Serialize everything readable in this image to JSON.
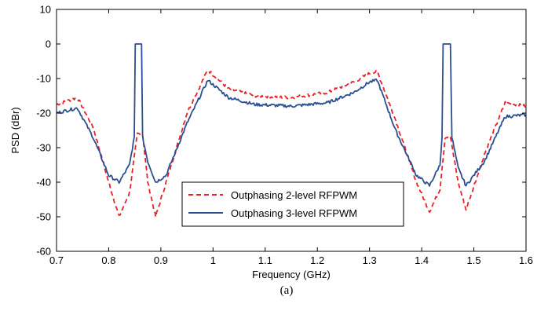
{
  "chart_data": {
    "type": "line",
    "title": "",
    "xlabel": "Frequency (GHz)",
    "ylabel": "PSD (dBr)",
    "caption": "(a)",
    "xlim": [
      0.7,
      1.6
    ],
    "ylim": [
      -60,
      10
    ],
    "xticks": [
      "0.7",
      "0.8",
      "0.9",
      "1",
      "1.1",
      "1.2",
      "1.3",
      "1.4",
      "1.5",
      "1.6"
    ],
    "yticks": [
      "10",
      "0",
      "-10",
      "-20",
      "-30",
      "-40",
      "-50",
      "-60"
    ],
    "grid": false,
    "legend_position": "center-bottom",
    "series": [
      {
        "name": "Outphasing 2-level RFPWM",
        "color": "#e8202a",
        "style": "dashed",
        "x": [
          0.7,
          0.74,
          0.77,
          0.8,
          0.82,
          0.84,
          0.855,
          0.865,
          0.875,
          0.89,
          0.91,
          0.95,
          0.99,
          1.03,
          1.08,
          1.15,
          1.22,
          1.27,
          1.3,
          1.315,
          1.35,
          1.39,
          1.415,
          1.435,
          1.445,
          1.455,
          1.47,
          1.485,
          1.52,
          1.56,
          1.6
        ],
        "y": [
          -17.5,
          -15.5,
          -24,
          -40,
          -50,
          -43,
          -26,
          -26,
          -40,
          -50,
          -40,
          -20,
          -7.5,
          -13,
          -15,
          -15.5,
          -14,
          -11,
          -8.5,
          -8,
          -22,
          -40,
          -48.5,
          -42,
          -27,
          -27,
          -40,
          -48,
          -32,
          -17,
          -18
        ]
      },
      {
        "name": "Outphasing 3-level RFPWM",
        "color": "#2b4f91",
        "style": "solid",
        "x": [
          0.7,
          0.74,
          0.77,
          0.8,
          0.82,
          0.84,
          0.849,
          0.851,
          0.855,
          0.86,
          0.863,
          0.865,
          0.875,
          0.89,
          0.91,
          0.95,
          0.99,
          1.03,
          1.08,
          1.15,
          1.22,
          1.27,
          1.3,
          1.315,
          1.35,
          1.39,
          1.415,
          1.435,
          1.439,
          1.441,
          1.445,
          1.45,
          1.455,
          1.458,
          1.47,
          1.485,
          1.52,
          1.56,
          1.6
        ],
        "y": [
          -20,
          -18.5,
          -27,
          -38,
          -40,
          -35,
          -27,
          0,
          0,
          0,
          0,
          -27,
          -34,
          -40,
          -38,
          -23,
          -10.5,
          -15.5,
          -17.5,
          -18,
          -17,
          -14,
          -11,
          -10.5,
          -25,
          -38,
          -41,
          -35,
          -27,
          0,
          0,
          0,
          0,
          -27,
          -36,
          -41,
          -34,
          -21,
          -20.5
        ]
      }
    ]
  }
}
